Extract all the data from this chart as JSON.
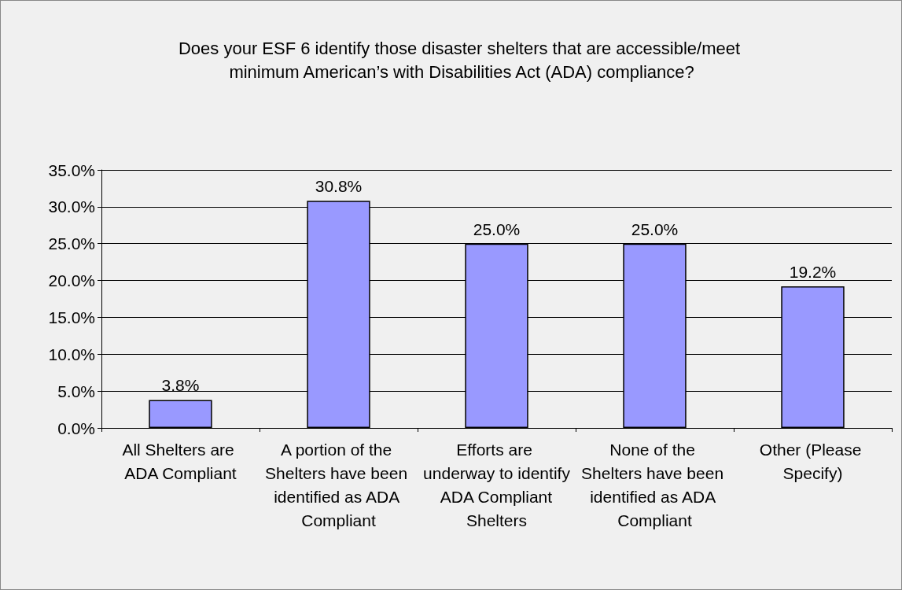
{
  "chart_data": {
    "type": "bar",
    "title": "Does your ESF 6 identify those disaster shelters that are accessible/meet minimum American’s with Disabilities Act (ADA) compliance?",
    "categories": [
      "All Shelters are ADA Compliant",
      "A portion of the Shelters have been identified as ADA Compliant",
      "Efforts are underway to identify ADA Compliant Shelters",
      "None of the Shelters have been identified as ADA Compliant",
      "Other (Please Specify)"
    ],
    "values": [
      3.8,
      30.8,
      25.0,
      25.0,
      19.2
    ],
    "value_labels": [
      "3.8%",
      "30.8%",
      "25.0%",
      "25.0%",
      "19.2%"
    ],
    "color": "#9999ff",
    "ylim": [
      0,
      35
    ],
    "yticks": [
      {
        "value": 0,
        "label": "0.0%"
      },
      {
        "value": 5,
        "label": "5.0%"
      },
      {
        "value": 10,
        "label": "10.0%"
      },
      {
        "value": 15,
        "label": "15.0%"
      },
      {
        "value": 20,
        "label": "20.0%"
      },
      {
        "value": 25,
        "label": "25.0%"
      },
      {
        "value": 30,
        "label": "30.0%"
      },
      {
        "value": 35,
        "label": "35.0%"
      }
    ],
    "grid": "y"
  }
}
